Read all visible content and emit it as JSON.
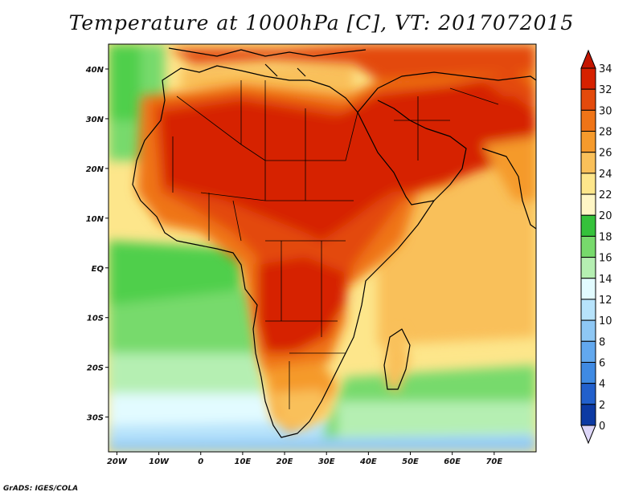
{
  "title": "Temperature at 1000hPa [C], VT: 2017072015",
  "credit": "GrADS: IGES/COLA",
  "map": {
    "variable": "Temperature",
    "level": "1000hPa",
    "units": "C",
    "valid_time": "2017072015",
    "lon_range": [
      -22,
      80
    ],
    "lat_range": [
      -37,
      45
    ],
    "lon_ticks": [
      {
        "value": -20,
        "label": "20W"
      },
      {
        "value": -10,
        "label": "10W"
      },
      {
        "value": 0,
        "label": "0"
      },
      {
        "value": 10,
        "label": "10E"
      },
      {
        "value": 20,
        "label": "20E"
      },
      {
        "value": 30,
        "label": "30E"
      },
      {
        "value": 40,
        "label": "40E"
      },
      {
        "value": 50,
        "label": "50E"
      },
      {
        "value": 60,
        "label": "60E"
      },
      {
        "value": 70,
        "label": "70E"
      }
    ],
    "lat_ticks": [
      {
        "value": 40,
        "label": "40N"
      },
      {
        "value": 30,
        "label": "30N"
      },
      {
        "value": 20,
        "label": "20N"
      },
      {
        "value": 10,
        "label": "10N"
      },
      {
        "value": 0,
        "label": "EQ"
      },
      {
        "value": -10,
        "label": "10S"
      },
      {
        "value": -20,
        "label": "20S"
      },
      {
        "value": -30,
        "label": "30S"
      }
    ]
  },
  "colorbar": {
    "levels": [
      {
        "value": 34,
        "label": "34",
        "color": "#d62100"
      },
      {
        "value": 32,
        "label": "32",
        "color": "#e34a0c"
      },
      {
        "value": 30,
        "label": "30",
        "color": "#ef7417"
      },
      {
        "value": 28,
        "label": "28",
        "color": "#f59a2c"
      },
      {
        "value": 26,
        "label": "26",
        "color": "#f9c05a"
      },
      {
        "value": 24,
        "label": "24",
        "color": "#fde68b"
      },
      {
        "value": 22,
        "label": "22",
        "color": "#fff6c5"
      },
      {
        "value": 20,
        "label": "20",
        "color": "#35c23b"
      },
      {
        "value": 18,
        "label": "18",
        "color": "#77da6c"
      },
      {
        "value": 16,
        "label": "16",
        "color": "#b5efb2"
      },
      {
        "value": 14,
        "label": "14",
        "color": "#e2fbff"
      },
      {
        "value": 12,
        "label": "12",
        "color": "#b7e3fb"
      },
      {
        "value": 10,
        "label": "10",
        "color": "#8ec7f4"
      },
      {
        "value": 8,
        "label": "8",
        "color": "#62a8ee"
      },
      {
        "value": 6,
        "label": "6",
        "color": "#3f8ae3"
      },
      {
        "value": 4,
        "label": "4",
        "color": "#2260cc"
      },
      {
        "value": 2,
        "label": "2",
        "color": "#0d3aa3"
      },
      {
        "value": 0,
        "label": "0",
        "color": "#081d6d"
      }
    ],
    "over_color": "#c41500",
    "under_color": "#ddd6f8"
  }
}
